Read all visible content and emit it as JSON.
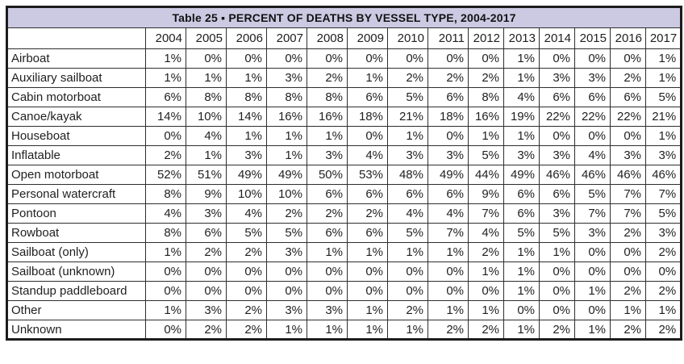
{
  "chart_data": {
    "type": "table",
    "title": "Table 25 ▪  PERCENT OF DEATHS BY VESSEL TYPE, 2004-2017",
    "columns": [
      "2004",
      "2005",
      "2006",
      "2007",
      "2008",
      "2009",
      "2010",
      "2011",
      "2012",
      "2013",
      "2014",
      "2015",
      "2016",
      "2017"
    ],
    "rows": [
      {
        "label": "Airboat",
        "values": [
          "1%",
          "0%",
          "0%",
          "0%",
          "0%",
          "0%",
          "0%",
          "0%",
          "0%",
          "1%",
          "0%",
          "0%",
          "0%",
          "1%"
        ]
      },
      {
        "label": "Auxiliary sailboat",
        "values": [
          "1%",
          "1%",
          "1%",
          "3%",
          "2%",
          "1%",
          "2%",
          "2%",
          "2%",
          "1%",
          "3%",
          "3%",
          "2%",
          "1%"
        ]
      },
      {
        "label": "Cabin motorboat",
        "values": [
          "6%",
          "8%",
          "8%",
          "8%",
          "8%",
          "6%",
          "5%",
          "6%",
          "8%",
          "4%",
          "6%",
          "6%",
          "6%",
          "5%"
        ]
      },
      {
        "label": "Canoe/kayak",
        "values": [
          "14%",
          "10%",
          "14%",
          "16%",
          "16%",
          "18%",
          "21%",
          "18%",
          "16%",
          "19%",
          "22%",
          "22%",
          "22%",
          "21%"
        ]
      },
      {
        "label": "Houseboat",
        "values": [
          "0%",
          "4%",
          "1%",
          "1%",
          "1%",
          "0%",
          "1%",
          "0%",
          "1%",
          "1%",
          "0%",
          "0%",
          "0%",
          "1%"
        ]
      },
      {
        "label": "Inflatable",
        "values": [
          "2%",
          "1%",
          "3%",
          "1%",
          "3%",
          "4%",
          "3%",
          "3%",
          "5%",
          "3%",
          "3%",
          "4%",
          "3%",
          "3%"
        ]
      },
      {
        "label": "Open motorboat",
        "values": [
          "52%",
          "51%",
          "49%",
          "49%",
          "50%",
          "53%",
          "48%",
          "49%",
          "44%",
          "49%",
          "46%",
          "46%",
          "46%",
          "46%"
        ]
      },
      {
        "label": "Personal watercraft",
        "values": [
          "8%",
          "9%",
          "10%",
          "10%",
          "6%",
          "6%",
          "6%",
          "6%",
          "9%",
          "6%",
          "6%",
          "5%",
          "7%",
          "7%"
        ]
      },
      {
        "label": "Pontoon",
        "values": [
          "4%",
          "3%",
          "4%",
          "2%",
          "2%",
          "2%",
          "4%",
          "4%",
          "7%",
          "6%",
          "3%",
          "7%",
          "7%",
          "5%"
        ]
      },
      {
        "label": "Rowboat",
        "values": [
          "8%",
          "6%",
          "5%",
          "5%",
          "6%",
          "6%",
          "5%",
          "7%",
          "4%",
          "5%",
          "5%",
          "3%",
          "2%",
          "3%"
        ]
      },
      {
        "label": "Sailboat (only)",
        "values": [
          "1%",
          "2%",
          "2%",
          "3%",
          "1%",
          "1%",
          "1%",
          "1%",
          "2%",
          "1%",
          "1%",
          "0%",
          "0%",
          "2%"
        ]
      },
      {
        "label": "Sailboat (unknown)",
        "values": [
          "0%",
          "0%",
          "0%",
          "0%",
          "0%",
          "0%",
          "0%",
          "0%",
          "1%",
          "1%",
          "0%",
          "0%",
          "0%",
          "0%"
        ]
      },
      {
        "label": "Standup paddleboard",
        "values": [
          "0%",
          "0%",
          "0%",
          "0%",
          "0%",
          "0%",
          "0%",
          "0%",
          "0%",
          "1%",
          "0%",
          "1%",
          "2%",
          "2%"
        ]
      },
      {
        "label": "Other",
        "values": [
          "1%",
          "3%",
          "2%",
          "3%",
          "3%",
          "1%",
          "2%",
          "1%",
          "1%",
          "0%",
          "0%",
          "0%",
          "1%",
          "1%"
        ]
      },
      {
        "label": "Unknown",
        "values": [
          "0%",
          "2%",
          "2%",
          "1%",
          "1%",
          "1%",
          "1%",
          "2%",
          "2%",
          "1%",
          "2%",
          "1%",
          "2%",
          "2%"
        ]
      }
    ]
  },
  "colors": {
    "title_background": "#ccc9e2",
    "border": "#1c1c1c",
    "text": "#1f1f1f"
  }
}
